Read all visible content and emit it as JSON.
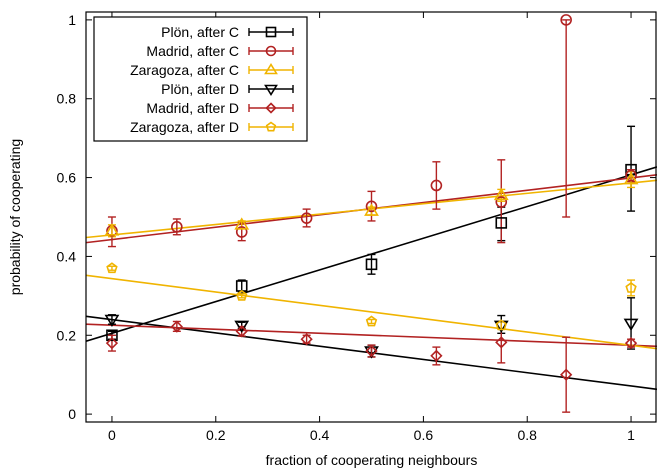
{
  "chart_data": {
    "type": "scatter",
    "xlabel": "fraction of cooperating neighbours",
    "ylabel": "probability of cooperating",
    "xlim": [
      -0.05,
      1.05
    ],
    "ylim": [
      -0.02,
      1.02
    ],
    "xticks": [
      "0",
      "0.2",
      "0.4",
      "0.6",
      "0.8",
      "1"
    ],
    "xtick_values": [
      0,
      0.2,
      0.4,
      0.6,
      0.8,
      1
    ],
    "yticks": [
      "0",
      "0.2",
      "0.4",
      "0.6",
      "0.8",
      "1"
    ],
    "ytick_values": [
      0,
      0.2,
      0.4,
      0.6,
      0.8,
      1
    ],
    "grid": false,
    "legend_position": "top-left",
    "series": [
      {
        "name": "Plön, after C",
        "color": "#000000",
        "marker": "square",
        "points": [
          {
            "x": 0,
            "y": 0.2,
            "lo": 0.19,
            "hi": 0.21
          },
          {
            "x": 0.25,
            "y": 0.325,
            "lo": 0.31,
            "hi": 0.34
          },
          {
            "x": 0.5,
            "y": 0.38,
            "lo": 0.355,
            "hi": 0.405
          },
          {
            "x": 0.75,
            "y": 0.485,
            "lo": 0.44,
            "hi": 0.525
          },
          {
            "x": 1,
            "y": 0.62,
            "lo": 0.515,
            "hi": 0.73
          }
        ],
        "fit": [
          [
            -0.05,
            0.185
          ],
          [
            1.05,
            0.627
          ]
        ]
      },
      {
        "name": "Madrid, after C",
        "color": "#b22222",
        "marker": "circle",
        "points": [
          {
            "x": 0,
            "y": 0.465,
            "lo": 0.425,
            "hi": 0.5
          },
          {
            "x": 0.125,
            "y": 0.475,
            "lo": 0.455,
            "hi": 0.495
          },
          {
            "x": 0.25,
            "y": 0.462,
            "lo": 0.44,
            "hi": 0.485
          },
          {
            "x": 0.375,
            "y": 0.497,
            "lo": 0.475,
            "hi": 0.52
          },
          {
            "x": 0.5,
            "y": 0.527,
            "lo": 0.49,
            "hi": 0.565
          },
          {
            "x": 0.625,
            "y": 0.58,
            "lo": 0.52,
            "hi": 0.64
          },
          {
            "x": 0.75,
            "y": 0.538,
            "lo": 0.435,
            "hi": 0.645
          },
          {
            "x": 0.875,
            "y": 1.0,
            "lo": 0.5,
            "hi": 1.0
          },
          {
            "x": 1,
            "y": 0.605,
            "lo": 0.59,
            "hi": 0.62
          }
        ],
        "fit": [
          [
            -0.05,
            0.435
          ],
          [
            1.05,
            0.607
          ]
        ]
      },
      {
        "name": "Zaragoza, after C",
        "color": "#f0b400",
        "marker": "triangle-up",
        "points": [
          {
            "x": 0,
            "y": 0.465,
            "lo": 0.45,
            "hi": 0.48
          },
          {
            "x": 0.25,
            "y": 0.48,
            "lo": 0.47,
            "hi": 0.49
          },
          {
            "x": 0.5,
            "y": 0.515,
            "lo": 0.505,
            "hi": 0.525
          },
          {
            "x": 0.75,
            "y": 0.555,
            "lo": 0.54,
            "hi": 0.57
          },
          {
            "x": 1,
            "y": 0.595,
            "lo": 0.575,
            "hi": 0.615
          }
        ],
        "fit": [
          [
            -0.05,
            0.448
          ],
          [
            1.05,
            0.593
          ]
        ]
      },
      {
        "name": "Plön, after D",
        "color": "#000000",
        "marker": "triangle-down",
        "points": [
          {
            "x": 0,
            "y": 0.24,
            "lo": 0.228,
            "hi": 0.252
          },
          {
            "x": 0.25,
            "y": 0.225,
            "lo": 0.217,
            "hi": 0.233
          },
          {
            "x": 0.5,
            "y": 0.16,
            "lo": 0.145,
            "hi": 0.175
          },
          {
            "x": 0.75,
            "y": 0.225,
            "lo": 0.205,
            "hi": 0.25
          },
          {
            "x": 1,
            "y": 0.23,
            "lo": 0.165,
            "hi": 0.295
          }
        ],
        "fit": [
          [
            -0.05,
            0.248
          ],
          [
            1.05,
            0.063
          ]
        ]
      },
      {
        "name": "Madrid, after D",
        "color": "#b22222",
        "marker": "diamond",
        "points": [
          {
            "x": 0,
            "y": 0.18,
            "lo": 0.16,
            "hi": 0.2
          },
          {
            "x": 0.125,
            "y": 0.222,
            "lo": 0.21,
            "hi": 0.235
          },
          {
            "x": 0.25,
            "y": 0.21,
            "lo": 0.198,
            "hi": 0.222
          },
          {
            "x": 0.375,
            "y": 0.19,
            "lo": 0.18,
            "hi": 0.2
          },
          {
            "x": 0.5,
            "y": 0.16,
            "lo": 0.145,
            "hi": 0.175
          },
          {
            "x": 0.625,
            "y": 0.148,
            "lo": 0.125,
            "hi": 0.17
          },
          {
            "x": 0.75,
            "y": 0.182,
            "lo": 0.13,
            "hi": 0.235
          },
          {
            "x": 0.875,
            "y": 0.1,
            "lo": 0.005,
            "hi": 0.195
          },
          {
            "x": 1,
            "y": 0.18,
            "lo": 0.17,
            "hi": 0.19
          }
        ],
        "fit": [
          [
            -0.05,
            0.228
          ],
          [
            1.05,
            0.172
          ]
        ]
      },
      {
        "name": "Zaragoza, after D",
        "color": "#f0b400",
        "marker": "pentagon",
        "points": [
          {
            "x": 0,
            "y": 0.37,
            "lo": 0.365,
            "hi": 0.375
          },
          {
            "x": 0.25,
            "y": 0.3,
            "lo": 0.295,
            "hi": 0.305
          },
          {
            "x": 0.5,
            "y": 0.235,
            "lo": 0.23,
            "hi": 0.24
          },
          {
            "x": 0.75,
            "y": 0.225,
            "lo": 0.215,
            "hi": 0.235
          },
          {
            "x": 1,
            "y": 0.32,
            "lo": 0.3,
            "hi": 0.34
          }
        ],
        "fit": [
          [
            -0.05,
            0.352
          ],
          [
            1.05,
            0.166
          ]
        ]
      }
    ]
  }
}
